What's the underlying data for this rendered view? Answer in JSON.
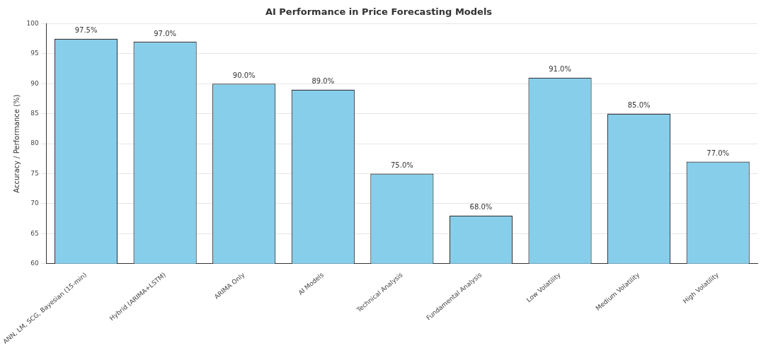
{
  "chart_data": {
    "type": "bar",
    "title": "AI Performance in Price Forecasting Models",
    "ylabel": "Accuracy / Performance (%)",
    "categories": [
      "ANN, LM, SCG, Bayesian (15-min)",
      "Hybrid (ARIMA+LSTM)",
      "ARIMA Only",
      "AI Models",
      "Technical Analysis",
      "Fundamental Analysis",
      "Low Volatility",
      "Medium Volatility",
      "High Volatility"
    ],
    "values": [
      97.5,
      97.0,
      90.0,
      89.0,
      75.0,
      68.0,
      91.0,
      85.0,
      77.0
    ],
    "value_labels": [
      "97.5%",
      "97.0%",
      "90.0%",
      "89.0%",
      "75.0%",
      "68.0%",
      "91.0%",
      "85.0%",
      "77.0%"
    ],
    "color": "#87ceeb",
    "ylim": [
      60,
      100
    ],
    "yticks": [
      60,
      65,
      70,
      75,
      80,
      85,
      90,
      95,
      100
    ],
    "grid": "y",
    "legend": false
  }
}
